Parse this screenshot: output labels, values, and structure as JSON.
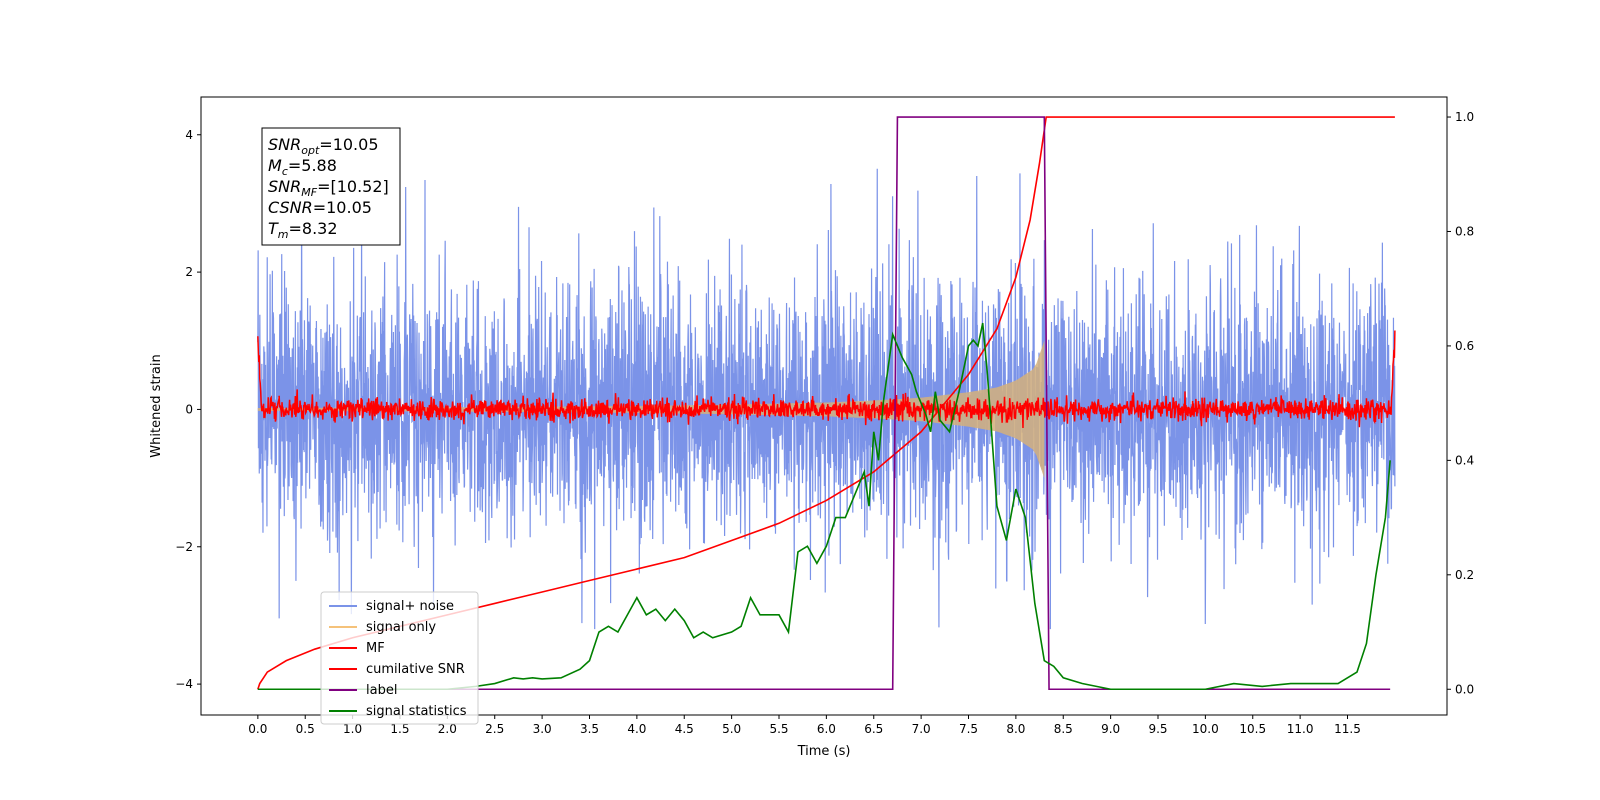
{
  "chart_data": {
    "type": "line",
    "xlabel": "Time (s)",
    "ylabel": "Whitened strain",
    "xlim": [
      -0.6,
      12.55
    ],
    "ylim_left": [
      -4.45,
      4.55
    ],
    "ylim_right": [
      -0.045,
      1.035
    ],
    "x_ticks": [
      0.0,
      0.5,
      1.0,
      1.5,
      2.0,
      2.5,
      3.0,
      3.5,
      4.0,
      4.5,
      5.0,
      5.5,
      6.0,
      6.5,
      7.0,
      7.5,
      8.0,
      8.5,
      9.0,
      9.5,
      10.0,
      10.5,
      11.0,
      11.5
    ],
    "x_tick_labels": [
      "0.0",
      "0.5",
      "1.0",
      "1.5",
      "2.0",
      "2.5",
      "3.0",
      "3.5",
      "4.0",
      "4.5",
      "5.0",
      "5.5",
      "6.0",
      "6.5",
      "7.0",
      "7.5",
      "8.0",
      "8.5",
      "9.0",
      "9.5",
      "10.0",
      "10.5",
      "11.0",
      "11.5"
    ],
    "y_ticks_left": [
      -4,
      -2,
      0,
      2,
      4
    ],
    "y_tick_labels_left": [
      "−4",
      "−2",
      "0",
      "2",
      "4"
    ],
    "y_ticks_right": [
      0.0,
      0.2,
      0.4,
      0.6,
      0.8,
      1.0
    ],
    "y_tick_labels_right": [
      "0.0",
      "0.2",
      "0.4",
      "0.6",
      "0.8",
      "1.0"
    ],
    "legend_position": "bottom-left",
    "annotation": {
      "lines": [
        {
          "main": "SNR",
          "sub": "opt",
          "rest": "=10.05"
        },
        {
          "main": "M",
          "sub": "c",
          "rest": "=5.88"
        },
        {
          "main": "SNR",
          "sub": "MF",
          "rest": "=[10.52]"
        },
        {
          "main": "CSNR",
          "sub": "",
          "rest": "=10.05"
        },
        {
          "main": "T",
          "sub": "m",
          "rest": "=8.32"
        }
      ]
    },
    "series": [
      {
        "name": "signal+ noise",
        "color": "#7b93e8",
        "axis": "left",
        "x_range": [
          0.0,
          12.0
        ],
        "amplitude_std": 0.9,
        "peak_max": 4.15,
        "peak_min": -3.2
      },
      {
        "name": "signal only",
        "color": "#f5c27a",
        "axis": "left",
        "envelope_x": [
          0.0,
          2.0,
          4.0,
          5.0,
          6.0,
          6.5,
          7.0,
          7.5,
          7.8,
          8.0,
          8.2,
          8.3
        ],
        "envelope_y": [
          0.02,
          0.03,
          0.05,
          0.07,
          0.1,
          0.13,
          0.17,
          0.25,
          0.32,
          0.42,
          0.6,
          1.0
        ]
      },
      {
        "name": "MF",
        "color": "#ff0000",
        "axis": "left",
        "x_range": [
          0.0,
          12.0
        ],
        "amplitude_std": 0.08,
        "start_value": 1.0,
        "end_value": 1.0
      },
      {
        "name": "cumilative SNR",
        "color": "#ff0000",
        "axis": "right",
        "x": [
          0.0,
          0.02,
          0.1,
          0.3,
          0.6,
          1.0,
          1.5,
          2.0,
          2.5,
          3.0,
          3.5,
          4.0,
          4.5,
          5.0,
          5.5,
          6.0,
          6.5,
          7.0,
          7.5,
          7.8,
          8.0,
          8.15,
          8.25,
          8.32,
          9.0,
          10.0,
          11.0,
          12.0
        ],
        "y": [
          0.0,
          0.01,
          0.03,
          0.05,
          0.07,
          0.09,
          0.11,
          0.13,
          0.15,
          0.17,
          0.19,
          0.21,
          0.23,
          0.26,
          0.29,
          0.33,
          0.38,
          0.45,
          0.55,
          0.63,
          0.72,
          0.82,
          0.92,
          1.0,
          1.0,
          1.0,
          1.0,
          1.0
        ]
      },
      {
        "name": "label",
        "color": "#800080",
        "axis": "right",
        "x": [
          0.0,
          6.7,
          6.75,
          8.3,
          8.35,
          11.95
        ],
        "y": [
          0.0,
          0.0,
          1.0,
          1.0,
          0.0,
          0.0
        ]
      },
      {
        "name": "signal statistics",
        "color": "#008000",
        "axis": "right",
        "x": [
          0.0,
          0.5,
          1.0,
          1.5,
          2.0,
          2.3,
          2.5,
          2.7,
          2.8,
          2.9,
          3.0,
          3.2,
          3.4,
          3.5,
          3.6,
          3.7,
          3.8,
          3.9,
          4.0,
          4.1,
          4.2,
          4.3,
          4.4,
          4.5,
          4.6,
          4.7,
          4.8,
          5.0,
          5.1,
          5.2,
          5.3,
          5.4,
          5.5,
          5.6,
          5.7,
          5.8,
          5.9,
          6.0,
          6.1,
          6.2,
          6.3,
          6.4,
          6.45,
          6.5,
          6.55,
          6.6,
          6.7,
          6.8,
          6.9,
          6.95,
          7.0,
          7.05,
          7.1,
          7.15,
          7.2,
          7.3,
          7.4,
          7.5,
          7.55,
          7.6,
          7.65,
          7.7,
          7.8,
          7.9,
          8.0,
          8.1,
          8.2,
          8.3,
          8.4,
          8.5,
          8.7,
          9.0,
          9.5,
          10.0,
          10.3,
          10.6,
          10.9,
          11.2,
          11.4,
          11.5,
          11.6,
          11.7,
          11.8,
          11.9,
          11.95
        ],
        "y": [
          0.0,
          0.0,
          0.0,
          0.0,
          0.0,
          0.005,
          0.01,
          0.02,
          0.018,
          0.02,
          0.018,
          0.02,
          0.035,
          0.05,
          0.1,
          0.11,
          0.1,
          0.13,
          0.16,
          0.13,
          0.14,
          0.12,
          0.14,
          0.12,
          0.09,
          0.1,
          0.09,
          0.1,
          0.11,
          0.16,
          0.13,
          0.13,
          0.13,
          0.1,
          0.24,
          0.25,
          0.22,
          0.25,
          0.3,
          0.3,
          0.34,
          0.38,
          0.32,
          0.45,
          0.4,
          0.5,
          0.62,
          0.58,
          0.55,
          0.52,
          0.5,
          0.48,
          0.45,
          0.52,
          0.47,
          0.45,
          0.52,
          0.6,
          0.61,
          0.6,
          0.64,
          0.55,
          0.32,
          0.26,
          0.35,
          0.3,
          0.15,
          0.05,
          0.04,
          0.02,
          0.01,
          0.0,
          0.0,
          0.0,
          0.01,
          0.005,
          0.01,
          0.01,
          0.01,
          0.02,
          0.03,
          0.08,
          0.2,
          0.3,
          0.4
        ]
      }
    ]
  }
}
